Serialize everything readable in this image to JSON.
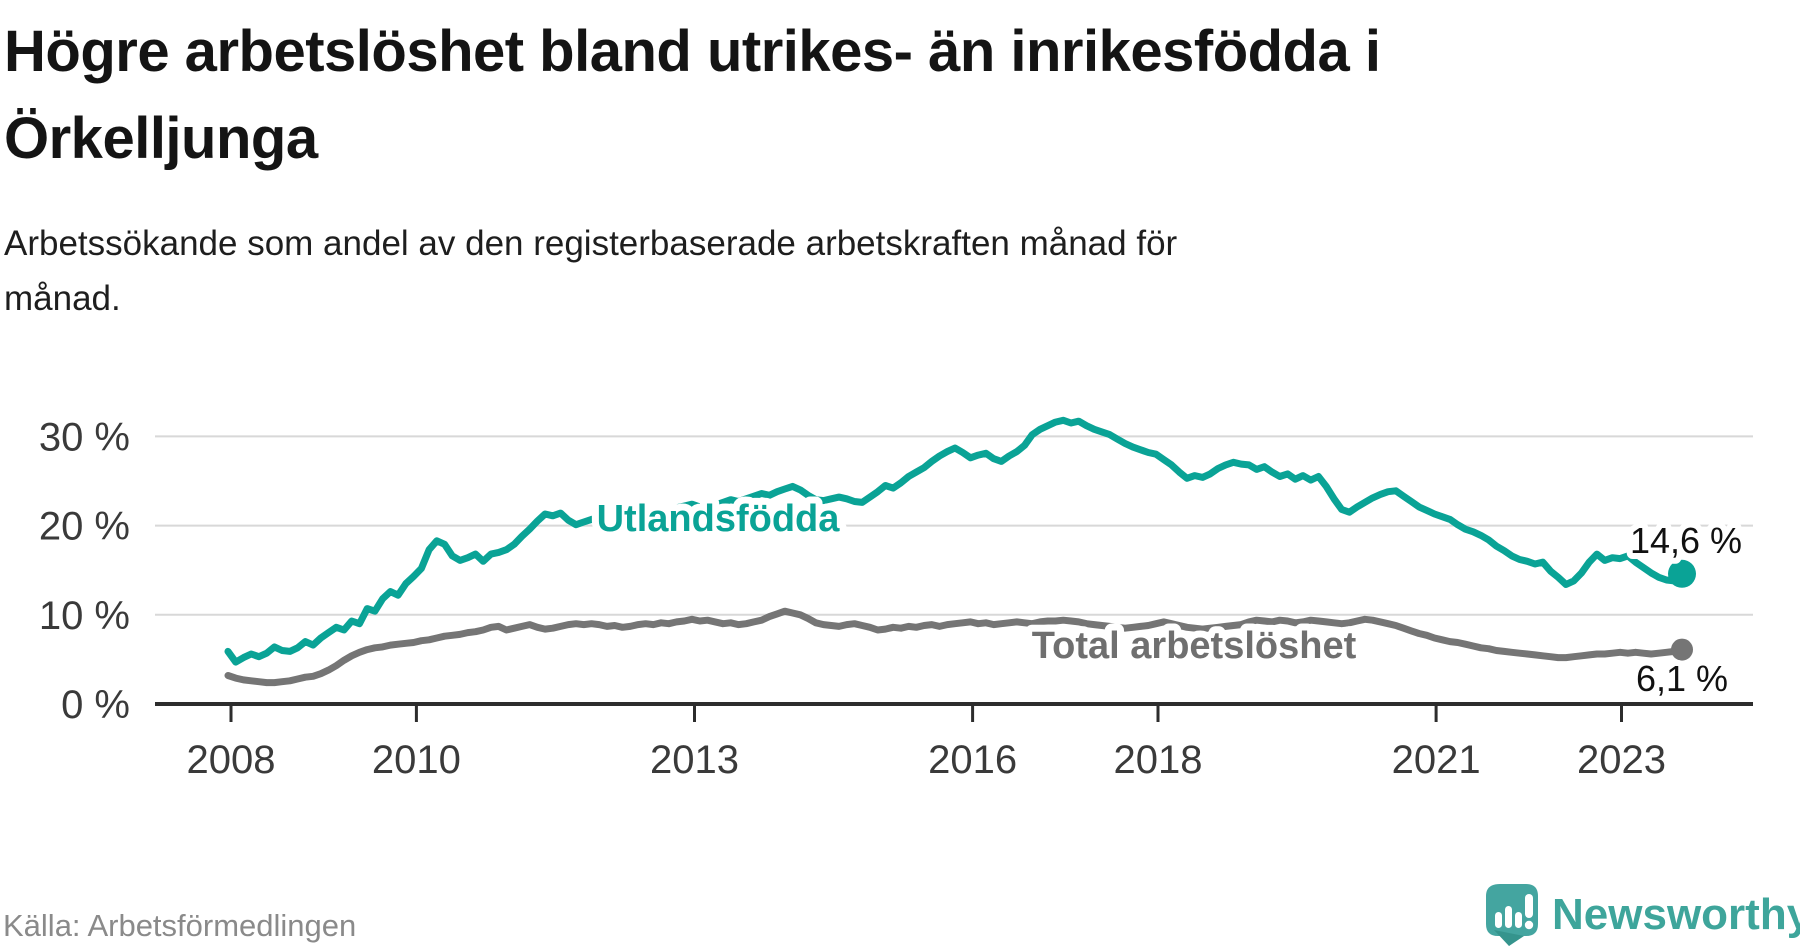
{
  "header": {
    "title_lines": [
      "Högre arbetslöshet bland utrikes- än inrikesfödda i",
      "Örkelljunga"
    ],
    "subtitle_lines": [
      "Arbetssökande som andel av den registerbaserade arbetskraften månad för",
      "månad."
    ]
  },
  "footer": {
    "source": "Källa: Arbetsförmedlingen",
    "brand": "Newsworthy"
  },
  "icons": {
    "brand_icon": "newsworthy-speech-bubble-bar-chart-icon"
  },
  "colors": {
    "accent_teal": "#0aa396",
    "line_gray": "#757575",
    "brand_teal": "#3ea59b",
    "gridline": "#d8d8d8",
    "axis": "#2d2d2d"
  },
  "chart_data": {
    "type": "line",
    "unit": "%",
    "x_start": {
      "year": 2008,
      "month": 1
    },
    "x_end": {
      "year": 2023,
      "month": 9
    },
    "grid": "horizontal",
    "legend_position": "inline-labels",
    "x_axis": {
      "ticks": [
        {
          "value": 2008,
          "label": "2008"
        },
        {
          "value": 2010,
          "label": "2010"
        },
        {
          "value": 2013,
          "label": "2013"
        },
        {
          "value": 2016,
          "label": "2016"
        },
        {
          "value": 2018,
          "label": "2018"
        },
        {
          "value": 2021,
          "label": "2021"
        },
        {
          "value": 2023,
          "label": "2023"
        }
      ]
    },
    "y_axis": {
      "min": 0,
      "max": 32,
      "ticks": [
        {
          "value": 0,
          "label": "0 %"
        },
        {
          "value": 10,
          "label": "10 %"
        },
        {
          "value": 20,
          "label": "20 %"
        },
        {
          "value": 30,
          "label": "30 %"
        }
      ]
    },
    "series": [
      {
        "name": "Utlandsfödda",
        "color": "#0aa396",
        "end_label": "14,6 %",
        "end_value": 14.6,
        "dot_radius": 14,
        "values": [
          5.9,
          4.7,
          5.2,
          5.6,
          5.3,
          5.7,
          6.4,
          6.0,
          5.9,
          6.3,
          7.0,
          6.6,
          7.4,
          8.0,
          8.6,
          8.3,
          9.3,
          9.0,
          10.7,
          10.4,
          11.8,
          12.6,
          12.2,
          13.5,
          14.3,
          15.2,
          17.3,
          18.3,
          17.9,
          16.6,
          16.1,
          16.4,
          16.8,
          16.0,
          16.8,
          17.0,
          17.3,
          17.9,
          18.8,
          19.6,
          20.5,
          21.3,
          21.1,
          21.4,
          20.6,
          20.1,
          20.4,
          20.7,
          20.9,
          20.6,
          21.0,
          21.3,
          21.1,
          21.5,
          21.3,
          21.6,
          21.9,
          21.7,
          22.0,
          22.2,
          22.4,
          22.1,
          22.5,
          22.3,
          22.6,
          22.9,
          22.7,
          23.0,
          23.3,
          23.6,
          23.4,
          23.8,
          24.1,
          24.4,
          24.0,
          23.4,
          22.9,
          22.8,
          23.0,
          23.2,
          23.0,
          22.7,
          22.6,
          23.2,
          23.8,
          24.5,
          24.2,
          24.8,
          25.5,
          26.0,
          26.5,
          27.2,
          27.8,
          28.3,
          28.7,
          28.2,
          27.6,
          27.9,
          28.1,
          27.5,
          27.2,
          27.8,
          28.3,
          29.0,
          30.2,
          30.8,
          31.2,
          31.6,
          31.8,
          31.5,
          31.7,
          31.2,
          30.8,
          30.5,
          30.2,
          29.7,
          29.2,
          28.8,
          28.5,
          28.2,
          28.0,
          27.4,
          26.8,
          26.0,
          25.3,
          25.6,
          25.4,
          25.8,
          26.4,
          26.8,
          27.1,
          26.9,
          26.8,
          26.3,
          26.6,
          26.0,
          25.5,
          25.8,
          25.2,
          25.6,
          25.1,
          25.5,
          24.4,
          23.0,
          21.8,
          21.5,
          22.1,
          22.6,
          23.1,
          23.5,
          23.8,
          23.9,
          23.3,
          22.7,
          22.1,
          21.7,
          21.3,
          21.0,
          20.7,
          20.1,
          19.6,
          19.3,
          18.9,
          18.4,
          17.7,
          17.2,
          16.6,
          16.2,
          16.0,
          15.7,
          15.9,
          14.9,
          14.2,
          13.4,
          13.8,
          14.7,
          15.9,
          16.8,
          16.1,
          16.4,
          16.3,
          16.6,
          15.9,
          15.3,
          14.7,
          14.2,
          13.9,
          13.8,
          14.6
        ]
      },
      {
        "name": "Total arbetslöshet",
        "color": "#757575",
        "end_label": "6,1 %",
        "end_value": 6.1,
        "dot_radius": 11,
        "values": [
          3.2,
          2.9,
          2.7,
          2.6,
          2.5,
          2.4,
          2.4,
          2.5,
          2.6,
          2.8,
          3.0,
          3.1,
          3.4,
          3.8,
          4.3,
          4.9,
          5.4,
          5.8,
          6.1,
          6.3,
          6.4,
          6.6,
          6.7,
          6.8,
          6.9,
          7.1,
          7.2,
          7.4,
          7.6,
          7.7,
          7.8,
          8.0,
          8.1,
          8.3,
          8.6,
          8.7,
          8.3,
          8.5,
          8.7,
          8.9,
          8.6,
          8.4,
          8.5,
          8.7,
          8.9,
          9.0,
          8.9,
          9.0,
          8.9,
          8.7,
          8.8,
          8.6,
          8.7,
          8.9,
          9.0,
          8.9,
          9.1,
          9.0,
          9.2,
          9.3,
          9.5,
          9.3,
          9.4,
          9.2,
          9.0,
          9.1,
          8.9,
          9.0,
          9.2,
          9.4,
          9.8,
          10.1,
          10.4,
          10.2,
          10.0,
          9.6,
          9.1,
          8.9,
          8.8,
          8.7,
          8.9,
          9.0,
          8.8,
          8.6,
          8.3,
          8.4,
          8.6,
          8.5,
          8.7,
          8.6,
          8.8,
          8.9,
          8.7,
          8.9,
          9.0,
          9.1,
          9.2,
          9.0,
          9.1,
          8.9,
          9.0,
          9.1,
          9.2,
          9.1,
          9.0,
          9.2,
          9.3,
          9.3,
          9.4,
          9.3,
          9.2,
          9.0,
          8.9,
          8.8,
          8.7,
          8.6,
          8.5,
          8.6,
          8.7,
          8.8,
          9.0,
          9.2,
          9.0,
          8.8,
          8.6,
          8.5,
          8.4,
          8.5,
          8.6,
          8.7,
          8.8,
          8.9,
          9.2,
          9.4,
          9.3,
          9.2,
          9.4,
          9.3,
          9.1,
          9.2,
          9.4,
          9.3,
          9.2,
          9.1,
          9.0,
          9.1,
          9.3,
          9.5,
          9.4,
          9.2,
          9.0,
          8.8,
          8.5,
          8.2,
          7.9,
          7.7,
          7.4,
          7.2,
          7.0,
          6.9,
          6.7,
          6.5,
          6.3,
          6.2,
          6.0,
          5.9,
          5.8,
          5.7,
          5.6,
          5.5,
          5.4,
          5.3,
          5.2,
          5.2,
          5.3,
          5.4,
          5.5,
          5.6,
          5.6,
          5.7,
          5.8,
          5.7,
          5.8,
          5.7,
          5.6,
          5.7,
          5.8,
          5.9,
          6.1
        ]
      }
    ]
  }
}
